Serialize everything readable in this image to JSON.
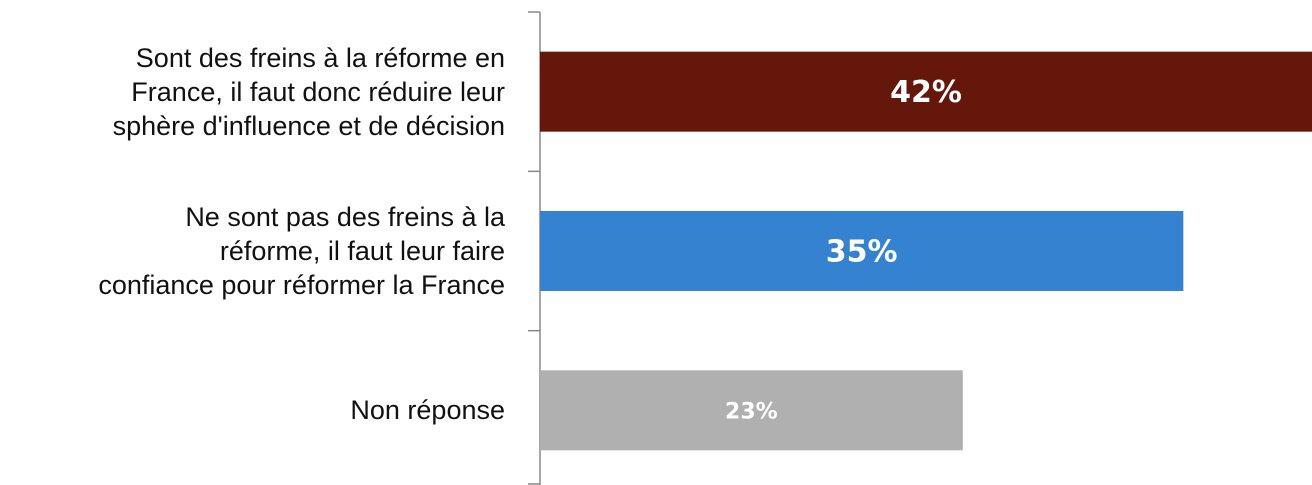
{
  "chart_data": {
    "type": "bar",
    "orientation": "horizontal",
    "categories": [
      "Sont des freins à la réforme en\nFrance, il faut donc réduire leur\nsphère d'influence et de décision",
      "Ne sont pas des freins à la\nréforme, il faut leur faire\nconfiance pour réformer la France",
      "Non réponse"
    ],
    "values": [
      42,
      35,
      23
    ],
    "value_labels": [
      "42%",
      "35%",
      "23%"
    ],
    "colors": [
      "#65170b",
      "#3582d0",
      "#b0b0b0"
    ]
  }
}
